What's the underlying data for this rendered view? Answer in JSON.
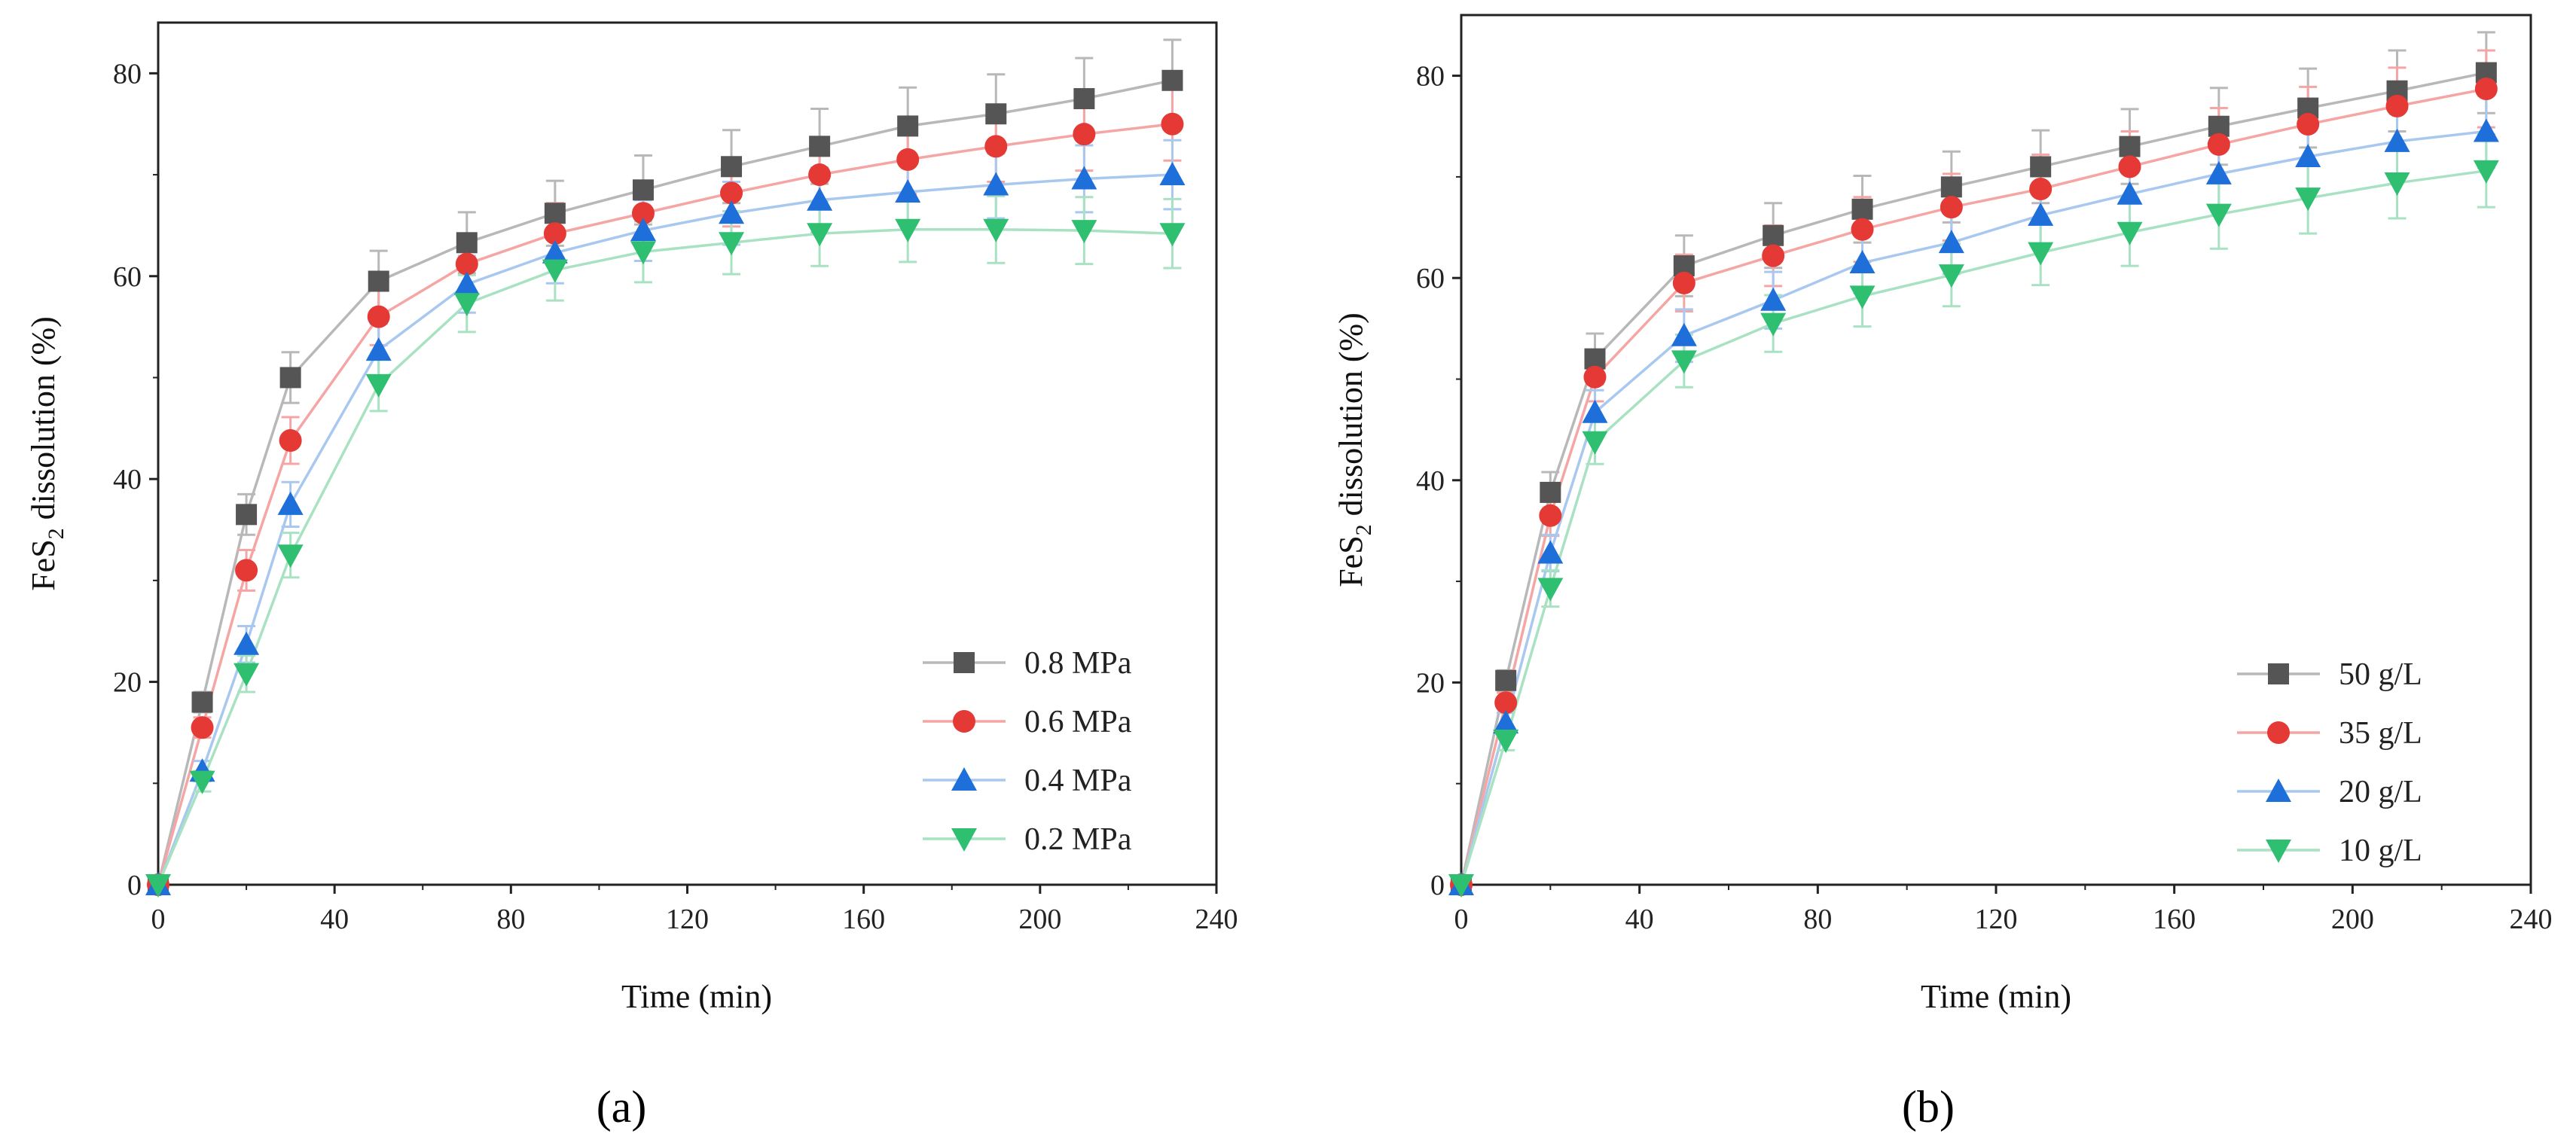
{
  "chart_data": [
    {
      "type": "line",
      "panel_label": "(a)",
      "xlabel": "Time (min)",
      "ylabel_main": "FeS",
      "ylabel_sub": "2",
      "ylabel_rest": " dissolution (%)",
      "xlim": [
        0,
        240
      ],
      "ylim": [
        0,
        85
      ],
      "xticks": [
        0,
        40,
        80,
        120,
        160,
        200,
        240
      ],
      "yticks": [
        0,
        20,
        40,
        60,
        80
      ],
      "grid": false,
      "legend_position": "bottom-right",
      "x": [
        0,
        10,
        20,
        30,
        50,
        70,
        90,
        110,
        130,
        150,
        170,
        190,
        210,
        230
      ],
      "series": [
        {
          "name": "0.8 MPa",
          "marker": "square",
          "color": "#555555",
          "line_color": "#b8b8b8",
          "values": [
            0,
            18,
            36.5,
            50,
            59.5,
            63.3,
            66.2,
            68.5,
            70.8,
            72.8,
            74.8,
            76,
            77.5,
            79.3
          ],
          "errors": [
            0,
            1,
            2,
            2.5,
            3,
            3,
            3.2,
            3.4,
            3.6,
            3.7,
            3.8,
            3.9,
            4,
            4
          ]
        },
        {
          "name": "0.6 MPa",
          "marker": "circle",
          "color": "#e53935",
          "line_color": "#f5a6a4",
          "values": [
            0,
            15.5,
            31,
            43.8,
            56,
            61.2,
            64.2,
            66.2,
            68.2,
            70,
            71.5,
            72.8,
            74,
            75
          ],
          "errors": [
            0,
            1,
            2,
            2.3,
            2.8,
            3,
            3,
            3.2,
            3.3,
            3.3,
            3.4,
            3.5,
            3.6,
            3.6
          ]
        },
        {
          "name": "0.4 MPa",
          "marker": "triangle-up",
          "color": "#1e6fd9",
          "line_color": "#a9c8f0",
          "values": [
            0,
            11.2,
            23.7,
            37.5,
            52.7,
            59.2,
            62.3,
            64.5,
            66.2,
            67.5,
            68.3,
            69,
            69.6,
            70
          ],
          "errors": [
            0,
            1,
            1.8,
            2.2,
            2.6,
            2.8,
            3,
            3,
            3.1,
            3.2,
            3.2,
            3.3,
            3.3,
            3.4
          ]
        },
        {
          "name": "0.2 MPa",
          "marker": "triangle-down",
          "color": "#2fbf71",
          "line_color": "#a8e2c2",
          "values": [
            0,
            10.2,
            20.8,
            32.5,
            49.3,
            57.3,
            60.6,
            62.4,
            63.3,
            64.2,
            64.6,
            64.6,
            64.5,
            64.2
          ],
          "errors": [
            0,
            1,
            1.8,
            2.2,
            2.6,
            2.8,
            3,
            3,
            3.1,
            3.2,
            3.2,
            3.3,
            3.3,
            3.4
          ]
        }
      ]
    },
    {
      "type": "line",
      "panel_label": "(b)",
      "xlabel": "Time (min)",
      "ylabel_main": "FeS",
      "ylabel_sub": "2",
      "ylabel_rest": " dissolution (%)",
      "xlim": [
        0,
        240
      ],
      "ylim": [
        0,
        86
      ],
      "xticks": [
        0,
        40,
        80,
        120,
        160,
        200,
        240
      ],
      "yticks": [
        0,
        20,
        40,
        60,
        80
      ],
      "grid": false,
      "legend_position": "bottom-right",
      "x": [
        0,
        10,
        20,
        30,
        50,
        70,
        90,
        110,
        130,
        150,
        170,
        190,
        210,
        230
      ],
      "series": [
        {
          "name": "50 g/L",
          "marker": "square",
          "color": "#555555",
          "line_color": "#b8b8b8",
          "values": [
            0,
            20.2,
            38.8,
            52,
            61.2,
            64.2,
            66.8,
            69,
            71,
            73,
            75,
            76.8,
            78.5,
            80.3
          ],
          "errors": [
            0,
            1,
            2,
            2.5,
            3,
            3.2,
            3.3,
            3.5,
            3.6,
            3.7,
            3.8,
            3.9,
            4,
            4
          ]
        },
        {
          "name": "35 g/L",
          "marker": "circle",
          "color": "#e53935",
          "line_color": "#f5a6a4",
          "values": [
            0,
            18,
            36.5,
            50.2,
            59.5,
            62.2,
            64.8,
            67,
            68.8,
            71,
            73.2,
            75.2,
            77,
            78.7
          ],
          "errors": [
            0,
            1,
            2,
            2.4,
            2.8,
            3,
            3.2,
            3.3,
            3.4,
            3.5,
            3.6,
            3.7,
            3.8,
            3.8
          ]
        },
        {
          "name": "20 g/L",
          "marker": "triangle-up",
          "color": "#1e6fd9",
          "line_color": "#a9c8f0",
          "values": [
            0,
            16,
            32.8,
            46.7,
            54.3,
            57.8,
            61.5,
            63.5,
            66.2,
            68.3,
            70.3,
            72,
            73.5,
            74.5
          ],
          "errors": [
            0,
            1,
            1.8,
            2.2,
            2.6,
            2.8,
            3,
            3.1,
            3.2,
            3.3,
            3.4,
            3.5,
            3.5,
            3.6
          ]
        },
        {
          "name": "10 g/L",
          "marker": "triangle-down",
          "color": "#2fbf71",
          "line_color": "#a8e2c2",
          "values": [
            0,
            14.3,
            29.3,
            43.8,
            51.8,
            55.5,
            58.2,
            60.3,
            62.5,
            64.5,
            66.3,
            67.9,
            69.4,
            70.6
          ],
          "errors": [
            0,
            1,
            1.8,
            2.2,
            2.6,
            2.8,
            3,
            3.1,
            3.2,
            3.3,
            3.4,
            3.5,
            3.5,
            3.6
          ]
        }
      ]
    }
  ]
}
